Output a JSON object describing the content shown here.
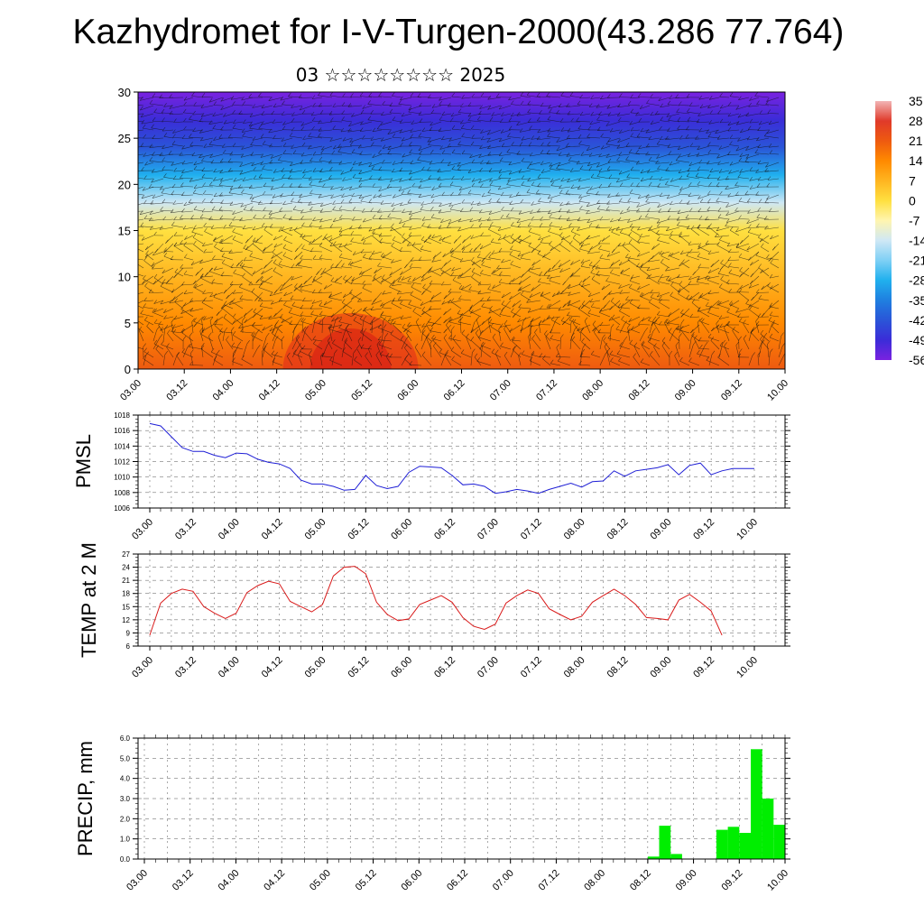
{
  "title": "Kazhydromet for I-V-Turgen-2000(43.286 77.764)",
  "subtitle": "03 ☆☆☆☆☆☆☆☆ 2025",
  "time_ticks": [
    "03.00",
    "03.12",
    "04.00",
    "04.12",
    "05.00",
    "05.12",
    "06.00",
    "06.12",
    "07.00",
    "07.12",
    "08.00",
    "08.12",
    "09.00",
    "09.12",
    "10.00"
  ],
  "colors": {
    "pmsl_line": "#1f1fd6",
    "temp_line": "#d91a1a",
    "precip_bar": "#00ee00",
    "grid": "#555555"
  },
  "chart_data": [
    {
      "type": "heatmap",
      "name": "temperature-wind-cross-section",
      "xlabel": "",
      "ylabel": "",
      "ylim": [
        0,
        30
      ],
      "y_ticks": [
        0,
        5,
        10,
        15,
        20,
        25,
        30
      ],
      "x": [
        "03.00",
        "03.12",
        "04.00",
        "04.12",
        "05.00",
        "05.12",
        "06.00",
        "06.12",
        "07.00",
        "07.12",
        "08.00",
        "08.12",
        "09.00",
        "09.12",
        "10.00"
      ],
      "colorbar": {
        "labels": [
          "35",
          "28",
          "21",
          "14",
          "7",
          "0",
          "-7",
          "-14",
          "-21",
          "-28",
          "-35",
          "-42",
          "-49",
          "-56"
        ],
        "stops": [
          "#f2b5b5",
          "#e03a2a",
          "#ee5a10",
          "#ff8a00",
          "#ffb520",
          "#ffe040",
          "#fff5b0",
          "#cfe8f5",
          "#7fd0f5",
          "#20b0ee",
          "#1f7fe0",
          "#2a55d8",
          "#3b2cd8",
          "#7a22e0"
        ]
      },
      "temperature_profile": [
        {
          "level": 0,
          "value": 24
        },
        {
          "level": 5,
          "value": 12
        },
        {
          "level": 10,
          "value": 6
        },
        {
          "level": 15,
          "value": -2
        },
        {
          "level": 18,
          "value": -14
        },
        {
          "level": 21,
          "value": -30
        },
        {
          "level": 24,
          "value": -45
        },
        {
          "level": 27,
          "value": -52
        },
        {
          "level": 30,
          "value": -58
        }
      ]
    },
    {
      "type": "line",
      "name": "pmsl",
      "ylabel": "PMSL",
      "ylim": [
        1006,
        1018
      ],
      "y_ticks": [
        1006,
        1008,
        1010,
        1012,
        1014,
        1016,
        1018
      ],
      "x": [
        0,
        0.25,
        0.5,
        0.75,
        1,
        1.25,
        1.5,
        1.75,
        2,
        2.25,
        2.5,
        2.75,
        3,
        3.25,
        3.5,
        3.75,
        4,
        4.25,
        4.5,
        4.75,
        5,
        5.25,
        5.5,
        5.75,
        6,
        6.25,
        6.5,
        6.75,
        7,
        7.25,
        7.5,
        7.75,
        8,
        8.25,
        8.5,
        8.75,
        9,
        9.25,
        9.5,
        9.75,
        10,
        10.25,
        10.5,
        10.75,
        11,
        11.25,
        11.5,
        11.75,
        12,
        12.25,
        12.5,
        12.75,
        13,
        13.25,
        13.5,
        13.75,
        14
      ],
      "values": [
        1016.9,
        1016.6,
        1015.2,
        1013.8,
        1013.3,
        1013.3,
        1012.8,
        1012.5,
        1013.1,
        1013.0,
        1012.3,
        1011.9,
        1011.7,
        1011.1,
        1009.6,
        1009.1,
        1009.1,
        1008.8,
        1008.3,
        1008.4,
        1010.2,
        1008.9,
        1008.5,
        1008.8,
        1010.6,
        1011.4,
        1011.3,
        1011.2,
        1010.2,
        1009.0,
        1009.1,
        1008.8,
        1007.9,
        1008.1,
        1008.4,
        1008.2,
        1007.9,
        1008.4,
        1008.8,
        1009.2,
        1008.7,
        1009.4,
        1009.5,
        1010.8,
        1010.1,
        1010.8,
        1011.0,
        1011.2,
        1011.6,
        1010.3,
        1011.5,
        1011.8,
        1010.3,
        1010.8,
        1011.1,
        1011.1,
        1011.1
      ]
    },
    {
      "type": "line",
      "name": "temp-2m",
      "ylabel": "TEMP at 2 M",
      "ylim": [
        6,
        27
      ],
      "y_ticks": [
        6,
        9,
        12,
        15,
        18,
        21,
        24,
        27
      ],
      "x": [
        0,
        0.25,
        0.5,
        0.75,
        1,
        1.25,
        1.5,
        1.75,
        2,
        2.25,
        2.5,
        2.75,
        3,
        3.25,
        3.5,
        3.75,
        4,
        4.25,
        4.5,
        4.75,
        5,
        5.25,
        5.5,
        5.75,
        6,
        6.25,
        6.5,
        6.75,
        7,
        7.25,
        7.5,
        7.75,
        8,
        8.25,
        8.5,
        8.75,
        9,
        9.25,
        9.5,
        9.75,
        10,
        10.25,
        10.5,
        10.75,
        11,
        11.25,
        11.5,
        11.75,
        12,
        12.25,
        12.5,
        12.75,
        13,
        13.25
      ],
      "values": [
        8.5,
        15.8,
        18.0,
        19.0,
        18.5,
        15.0,
        13.5,
        12.3,
        13.5,
        18.2,
        19.8,
        20.8,
        20.2,
        16.2,
        15.0,
        13.8,
        15.5,
        22.0,
        24.0,
        24.2,
        22.5,
        16.0,
        13.2,
        11.8,
        12.2,
        15.5,
        16.5,
        17.5,
        16.0,
        12.5,
        10.5,
        9.8,
        11.0,
        15.8,
        17.5,
        18.8,
        18.0,
        14.5,
        13.2,
        12.0,
        12.8,
        16.0,
        17.5,
        19.0,
        17.5,
        15.5,
        12.5,
        12.3,
        12.0,
        16.5,
        17.8,
        16.0,
        14.0,
        8.5
      ]
    },
    {
      "type": "bar",
      "name": "precip",
      "ylabel": "PRECIP, mm",
      "ylim": [
        0,
        6
      ],
      "y_ticks": [
        "0.0",
        "1.0",
        "2.0",
        "3.0",
        "4.0",
        "5.0",
        "6.0"
      ],
      "x": [
        0,
        0.25,
        0.5,
        0.75,
        1,
        1.25,
        1.5,
        1.75,
        2,
        2.25,
        2.5,
        2.75,
        3,
        3.25,
        3.5,
        3.75,
        4,
        4.25,
        4.5,
        4.75,
        5,
        5.25,
        5.5,
        5.75,
        6,
        6.25,
        6.5,
        6.75,
        7,
        7.25,
        7.5,
        7.75,
        8,
        8.25,
        8.5,
        8.75,
        9,
        9.25,
        9.5,
        9.75,
        10,
        10.25,
        10.5,
        10.75,
        11,
        11.25,
        11.5,
        11.75,
        12,
        12.25,
        12.5,
        12.75,
        13,
        13.25,
        13.5,
        13.75
      ],
      "values": [
        0,
        0,
        0,
        0,
        0,
        0,
        0,
        0,
        0,
        0,
        0,
        0,
        0,
        0,
        0,
        0,
        0,
        0,
        0,
        0,
        0,
        0,
        0,
        0,
        0,
        0,
        0,
        0,
        0,
        0,
        0,
        0,
        0,
        0,
        0,
        0,
        0,
        0,
        0,
        0,
        0,
        0,
        0,
        0,
        0.12,
        1.65,
        0.25,
        0,
        0,
        0,
        1.45,
        1.6,
        1.3,
        5.45,
        3.0,
        1.7
      ]
    }
  ]
}
